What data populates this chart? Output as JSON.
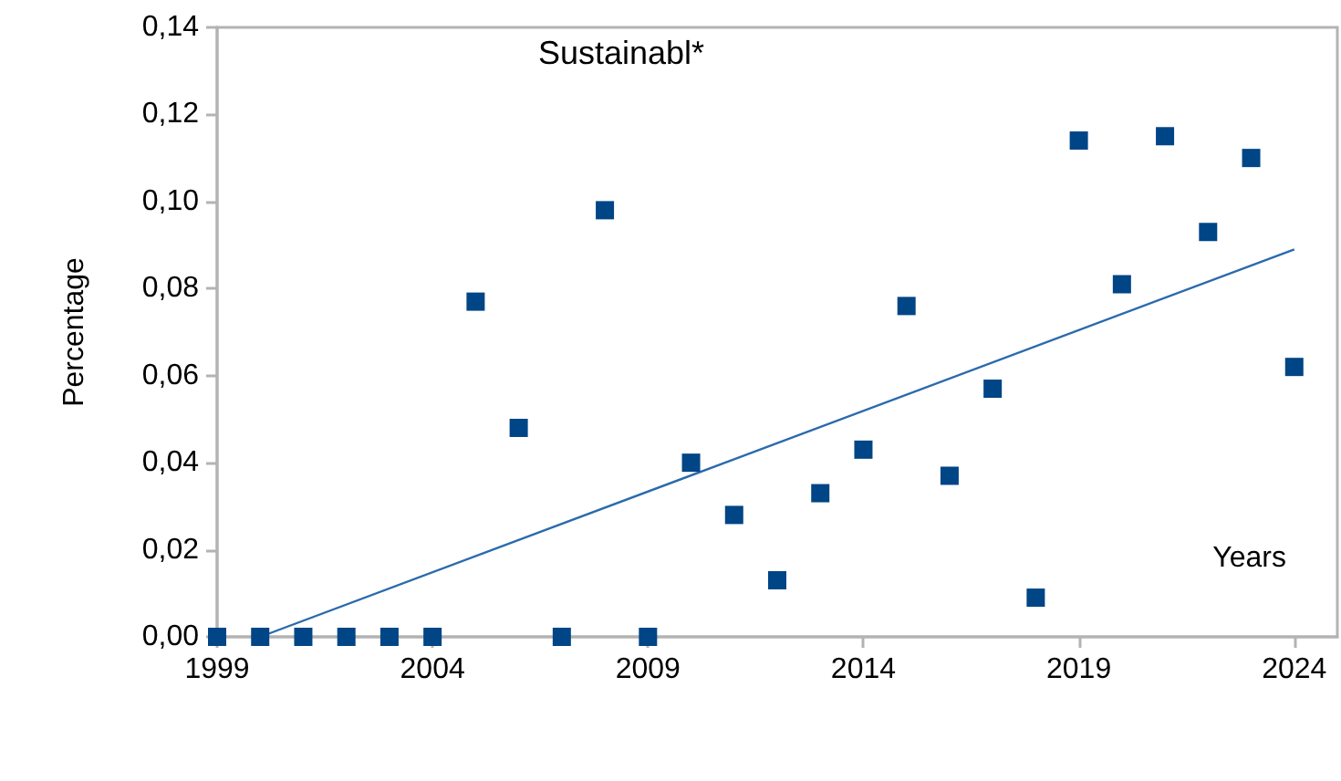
{
  "chart_data": {
    "type": "scatter",
    "title": "Sustainabl*",
    "xlabel": "Years",
    "ylabel": "Percentage",
    "series": [
      {
        "color": "#004586",
        "marker": "square",
        "x": [
          1999,
          2000,
          2001,
          2002,
          2003,
          2004,
          2005,
          2006,
          2007,
          2008,
          2009,
          2010,
          2011,
          2012,
          2013,
          2014,
          2015,
          2016,
          2017,
          2018,
          2019,
          2020,
          2021,
          2022,
          2023,
          2024
        ],
        "values": [
          0,
          0,
          0,
          0,
          0,
          0,
          0.077,
          0.048,
          0,
          0.098,
          0,
          0.04,
          0.028,
          0.013,
          0.033,
          0.043,
          0.076,
          0.037,
          0.057,
          0.009,
          0.114,
          0.081,
          0.115,
          0.093,
          0.11,
          0.062
        ]
      },
      {
        "type": "line",
        "color": "#2a6aac",
        "marker": "none",
        "line_style": "solid",
        "x": [
          2000,
          2024
        ],
        "values": [
          0,
          0.089
        ]
      }
    ],
    "xlim": [
      1999,
      2025
    ],
    "xticks": [
      1999,
      2004,
      2009,
      2014,
      2019,
      2024
    ],
    "ylim": [
      0,
      0.14
    ],
    "yticks": [
      {
        "value": 0,
        "label": "0,00"
      },
      {
        "value": 0.02,
        "label": "0,02"
      },
      {
        "value": 0.04,
        "label": "0,04"
      },
      {
        "value": 0.06,
        "label": "0,06"
      },
      {
        "value": 0.08,
        "label": "0,08"
      },
      {
        "value": 0.1,
        "label": "0,10"
      },
      {
        "value": 0.12,
        "label": "0,12"
      },
      {
        "value": 0.14,
        "label": "0,14"
      }
    ],
    "grid": false
  }
}
